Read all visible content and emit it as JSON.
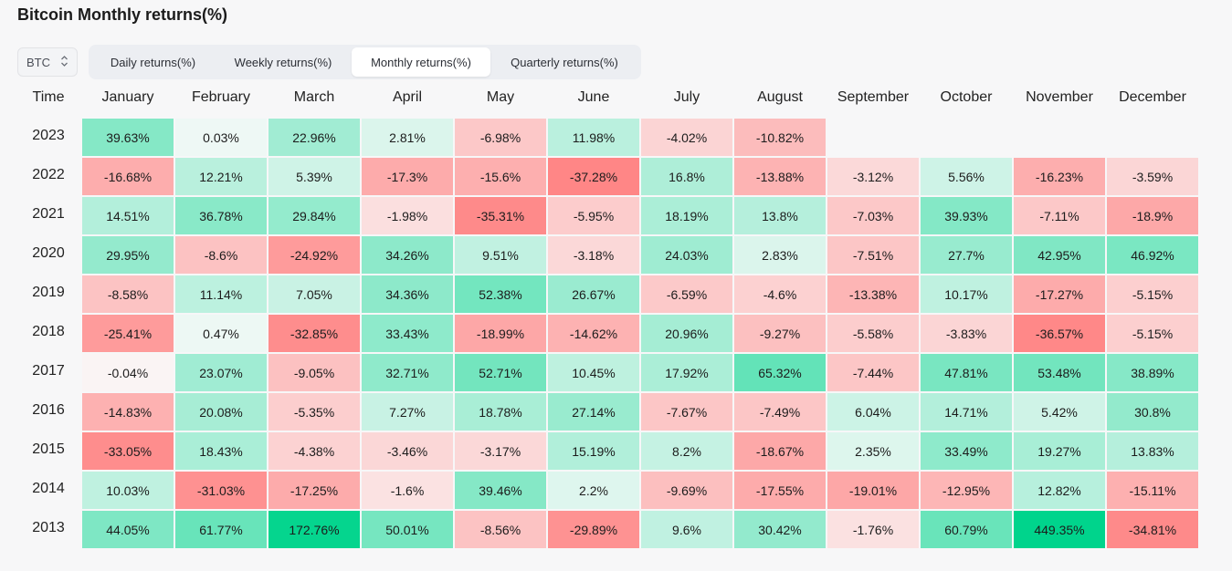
{
  "title": "Bitcoin Monthly returns(%)",
  "asset_select": {
    "value": "BTC",
    "icon": "chevron-up-down-icon"
  },
  "tabs": [
    {
      "label": "Daily returns(%)",
      "active": false
    },
    {
      "label": "Weekly returns(%)",
      "active": false
    },
    {
      "label": "Monthly returns(%)",
      "active": true
    },
    {
      "label": "Quarterly returns(%)",
      "active": false
    }
  ],
  "colors": {
    "positive": "#00d48c",
    "negative": "#ff7b7b",
    "neutral": "#fafafa"
  },
  "table": {
    "row_header": "Time",
    "months": [
      "January",
      "February",
      "March",
      "April",
      "May",
      "June",
      "July",
      "August",
      "September",
      "October",
      "November",
      "December"
    ],
    "rows": [
      {
        "year": "2023",
        "values": [
          "39.63%",
          "0.03%",
          "22.96%",
          "2.81%",
          "-6.98%",
          "11.98%",
          "-4.02%",
          "-10.82%",
          "",
          "",
          "",
          ""
        ]
      },
      {
        "year": "2022",
        "values": [
          "-16.68%",
          "12.21%",
          "5.39%",
          "-17.3%",
          "-15.6%",
          "-37.28%",
          "16.8%",
          "-13.88%",
          "-3.12%",
          "5.56%",
          "-16.23%",
          "-3.59%"
        ]
      },
      {
        "year": "2021",
        "values": [
          "14.51%",
          "36.78%",
          "29.84%",
          "-1.98%",
          "-35.31%",
          "-5.95%",
          "18.19%",
          "13.8%",
          "-7.03%",
          "39.93%",
          "-7.11%",
          "-18.9%"
        ]
      },
      {
        "year": "2020",
        "values": [
          "29.95%",
          "-8.6%",
          "-24.92%",
          "34.26%",
          "9.51%",
          "-3.18%",
          "24.03%",
          "2.83%",
          "-7.51%",
          "27.7%",
          "42.95%",
          "46.92%"
        ]
      },
      {
        "year": "2019",
        "values": [
          "-8.58%",
          "11.14%",
          "7.05%",
          "34.36%",
          "52.38%",
          "26.67%",
          "-6.59%",
          "-4.6%",
          "-13.38%",
          "10.17%",
          "-17.27%",
          "-5.15%"
        ]
      },
      {
        "year": "2018",
        "values": [
          "-25.41%",
          "0.47%",
          "-32.85%",
          "33.43%",
          "-18.99%",
          "-14.62%",
          "20.96%",
          "-9.27%",
          "-5.58%",
          "-3.83%",
          "-36.57%",
          "-5.15%"
        ]
      },
      {
        "year": "2017",
        "values": [
          "-0.04%",
          "23.07%",
          "-9.05%",
          "32.71%",
          "52.71%",
          "10.45%",
          "17.92%",
          "65.32%",
          "-7.44%",
          "47.81%",
          "53.48%",
          "38.89%"
        ]
      },
      {
        "year": "2016",
        "values": [
          "-14.83%",
          "20.08%",
          "-5.35%",
          "7.27%",
          "18.78%",
          "27.14%",
          "-7.67%",
          "-7.49%",
          "6.04%",
          "14.71%",
          "5.42%",
          "30.8%"
        ]
      },
      {
        "year": "2015",
        "values": [
          "-33.05%",
          "18.43%",
          "-4.38%",
          "-3.46%",
          "-3.17%",
          "15.19%",
          "8.2%",
          "-18.67%",
          "2.35%",
          "33.49%",
          "19.27%",
          "13.83%"
        ]
      },
      {
        "year": "2014",
        "values": [
          "10.03%",
          "-31.03%",
          "-17.25%",
          "-1.6%",
          "39.46%",
          "2.2%",
          "-9.69%",
          "-17.55%",
          "-19.01%",
          "-12.95%",
          "12.82%",
          "-15.11%"
        ]
      },
      {
        "year": "2013",
        "values": [
          "44.05%",
          "61.77%",
          "172.76%",
          "50.01%",
          "-8.56%",
          "-29.89%",
          "9.6%",
          "30.42%",
          "-1.76%",
          "60.79%",
          "449.35%",
          "-34.81%"
        ]
      }
    ]
  }
}
